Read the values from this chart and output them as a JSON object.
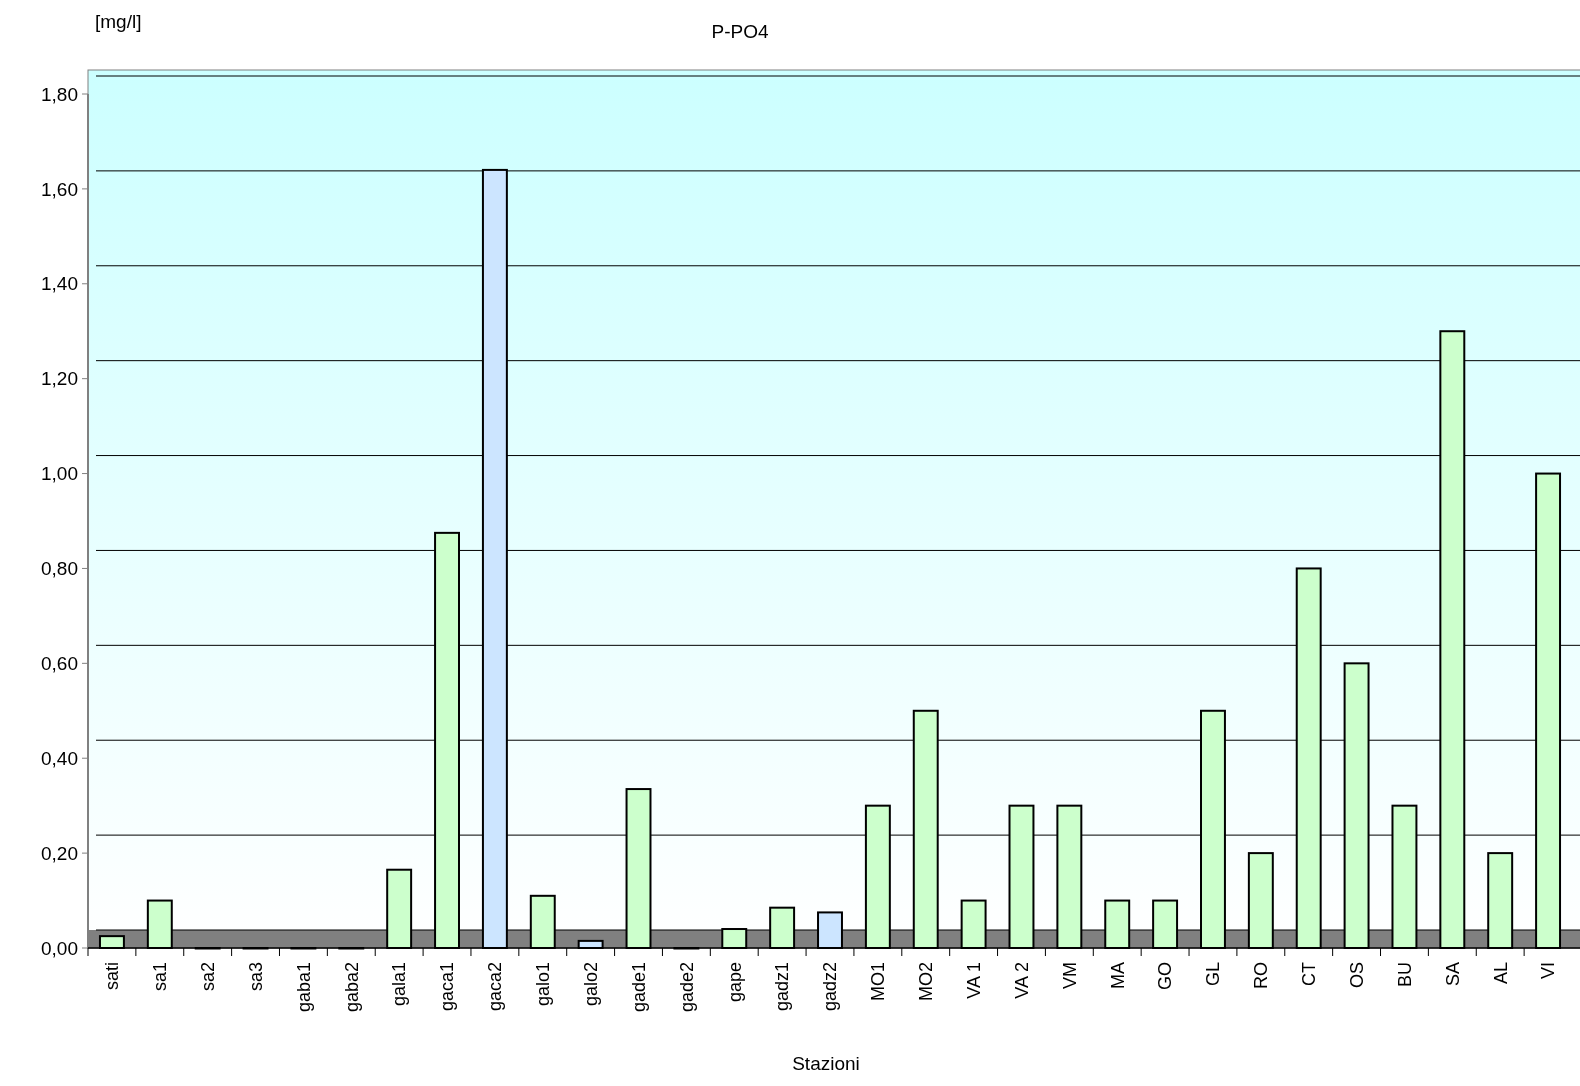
{
  "chart_data": {
    "type": "bar",
    "title": "P-PO4",
    "xlabel": "Stazioni",
    "ylabel": "[mg/l]",
    "categories": [
      "sati",
      "sa1",
      "sa2",
      "sa3",
      "gaba1",
      "gaba2",
      "gala1",
      "gaca1",
      "gaca2",
      "galo1",
      "galo2",
      "gade1",
      "gade2",
      "gape",
      "gadz1",
      "gadz2",
      "MO1",
      "MO2",
      "VA 1",
      "VA 2",
      "VM",
      "MA",
      "GO",
      "GL",
      "RO",
      "CT",
      "OS",
      "BU",
      "SA",
      "AL",
      "VI"
    ],
    "values": [
      0.025,
      0.1,
      0,
      0,
      0,
      0,
      0.165,
      0.875,
      1.64,
      0.11,
      0.015,
      0.335,
      0,
      0.04,
      0.085,
      0.075,
      0.3,
      0.5,
      0.1,
      0.3,
      0.3,
      0.1,
      0.1,
      0.5,
      0.2,
      0.8,
      0.6,
      0.3,
      1.3,
      0.2,
      1.0
    ],
    "colors": [
      "#ccffcc",
      "#ccffcc",
      "#ccffcc",
      "#ccffcc",
      "#ccffcc",
      "#cce5ff",
      "#ccffcc",
      "#ccffcc",
      "#cce5ff",
      "#ccffcc",
      "#cce5ff",
      "#ccffcc",
      "#cce5ff",
      "#ccffcc",
      "#ccffcc",
      "#cce5ff",
      "#ccffcc",
      "#ccffcc",
      "#ccffcc",
      "#ccffcc",
      "#ccffcc",
      "#ccffcc",
      "#ccffcc",
      "#ccffcc",
      "#ccffcc",
      "#ccffcc",
      "#ccffcc",
      "#ccffcc",
      "#ccffcc",
      "#ccffcc",
      "#ccffcc"
    ],
    "ylim": [
      0,
      1.8
    ],
    "yticks": [
      {
        "value": 0,
        "label": "0,00"
      },
      {
        "value": 0.2,
        "label": "0,20"
      },
      {
        "value": 0.4,
        "label": "0,40"
      },
      {
        "value": 0.6,
        "label": "0,60"
      },
      {
        "value": 0.8,
        "label": "0,80"
      },
      {
        "value": 1.0,
        "label": "1,00"
      },
      {
        "value": 1.2,
        "label": "1,20"
      },
      {
        "value": 1.4,
        "label": "1,40"
      },
      {
        "value": 1.6,
        "label": "1,60"
      },
      {
        "value": 1.8,
        "label": "1,80"
      }
    ],
    "grid": "y"
  }
}
